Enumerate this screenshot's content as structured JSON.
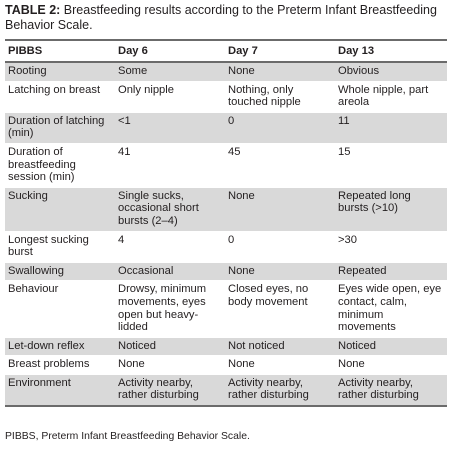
{
  "caption": {
    "label": "TABLE 2:",
    "text": " Breastfeeding results according to the Preterm Infant Breastfeeding Behavior Scale."
  },
  "table": {
    "headers": [
      "PIBBS",
      "Day 6",
      "Day 7",
      "Day 13"
    ],
    "rows": [
      [
        "Rooting",
        "Some",
        "None",
        "Obvious"
      ],
      [
        "Latching on breast",
        "Only nipple",
        "Nothing, only touched nipple",
        "Whole nipple, part areola"
      ],
      [
        "Duration of latching (min)",
        "<1",
        "0",
        "11"
      ],
      [
        "Duration of breastfeeding session (min)",
        "41",
        "45",
        "15"
      ],
      [
        "Sucking",
        "Single sucks, occasional short bursts (2–4)",
        "None",
        "Repeated long bursts (>10)"
      ],
      [
        "Longest sucking burst",
        "4",
        "0",
        ">30"
      ],
      [
        "Swallowing",
        "Occasional",
        "None",
        "Repeated"
      ],
      [
        "Behaviour",
        "Drowsy, minimum movements, eyes open but heavy-lidded",
        "Closed eyes, no body movement",
        "Eyes wide open, eye contact, calm, minimum movements"
      ],
      [
        "Let-down reflex",
        "Noticed",
        "Not noticed",
        "Noticed"
      ],
      [
        "Breast problems",
        "None",
        "None",
        "None"
      ],
      [
        "Environment",
        "Activity nearby, rather disturbing",
        "Activity nearby, rather disturbing",
        "Activity nearby, rather disturbing"
      ]
    ]
  },
  "footnote": "PIBBS, Preterm Infant Breastfeeding Behavior Scale.",
  "colors": {
    "stripe": "#d9d9d9",
    "rule": "#6b6b6b",
    "text": "#231f20"
  }
}
